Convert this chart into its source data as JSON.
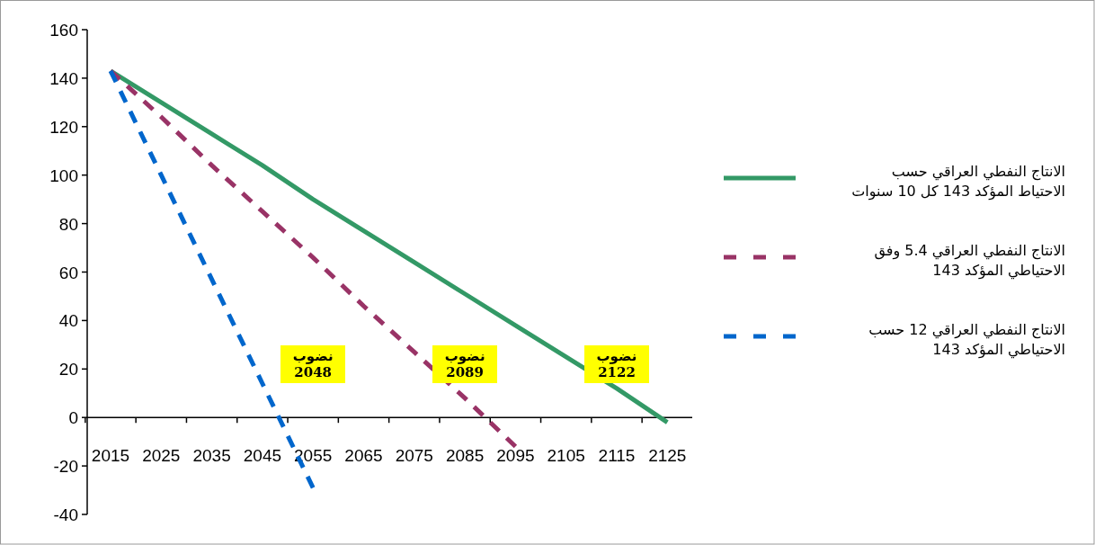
{
  "chart_data": {
    "type": "line",
    "categories": [
      "2015",
      "2025",
      "2035",
      "2045",
      "2055",
      "2065",
      "2075",
      "2085",
      "2095",
      "2105",
      "2115",
      "2125"
    ],
    "series": [
      {
        "name": "الانتاج النفطي العراقي حسب الاحتياط المؤكد 143 كل 10 سنوات",
        "color": "#339966",
        "line_style": "solid",
        "values": [
          143,
          130,
          117,
          104,
          90,
          77,
          64,
          51,
          38,
          25,
          12,
          -2
        ]
      },
      {
        "name": "الانتاج النفطي العراقي 5.4 وفق الاحتياطي المؤكد 143",
        "color": "#993366",
        "line_style": "dashed",
        "values": [
          143,
          124,
          104,
          85,
          66,
          46,
          27,
          8,
          -12,
          null,
          null,
          null
        ]
      },
      {
        "name": "الانتاج النفطي العراقي 12 حسب الاحتياطي المؤكد 143",
        "color": "#0066cc",
        "line_style": "dashed",
        "values": [
          143,
          100,
          57,
          14,
          -29,
          null,
          null,
          null,
          null,
          null,
          null,
          null
        ]
      }
    ],
    "ylim": [
      -40,
      160
    ],
    "yticks": [
      -40,
      -20,
      0,
      20,
      40,
      60,
      80,
      100,
      120,
      140,
      160
    ],
    "legend": "right",
    "marker": "none",
    "annotations": [
      "نضوب 2048",
      "نضوب 2089",
      "نضوب 2122"
    ]
  }
}
